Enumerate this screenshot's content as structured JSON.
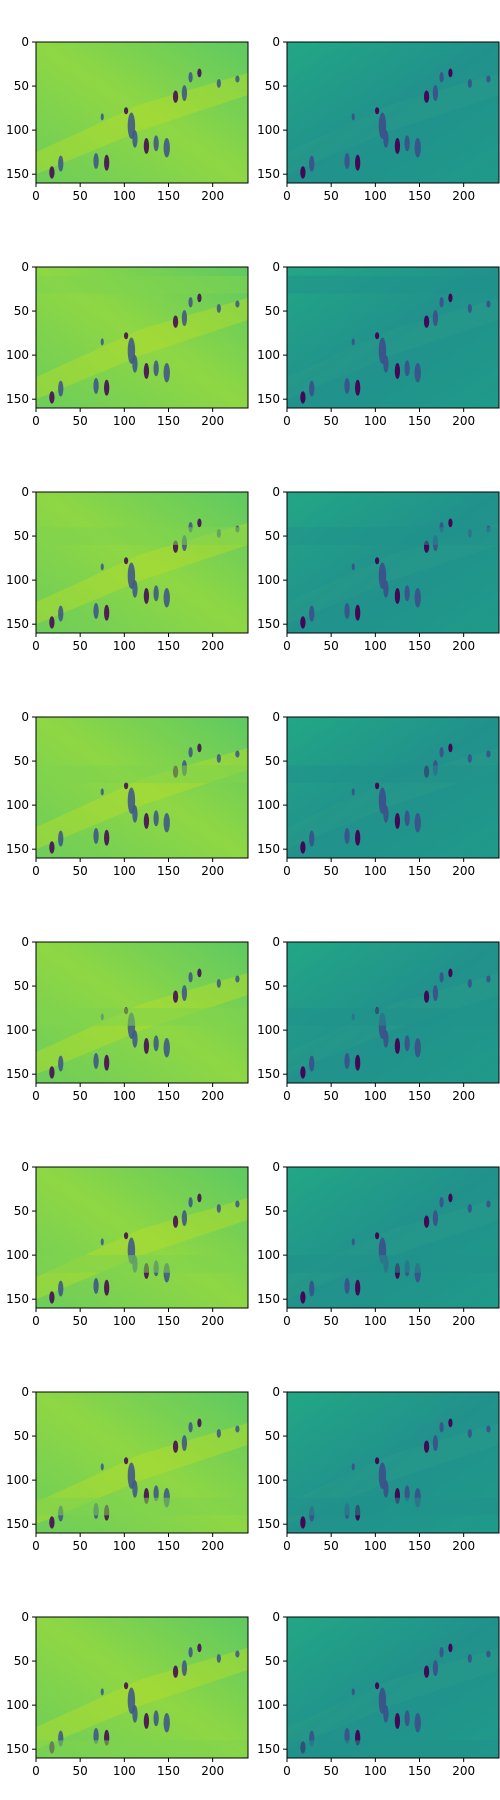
{
  "figure": {
    "rows": 8,
    "cols": 2,
    "colormap": "viridis",
    "colors": {
      "left_background": "#5ec962",
      "left_highlight": "#b8de29",
      "right_background": "#21918c",
      "figure_dark": "#440154",
      "mid_dark": "#3b528b",
      "axis": "#000000"
    }
  },
  "chart_data": {
    "type": "heatmap",
    "description_free": true,
    "xlim": [
      0,
      240
    ],
    "ylim": [
      160,
      0
    ],
    "x_ticks": [
      0,
      50,
      100,
      150,
      200
    ],
    "y_ticks": [
      0,
      50,
      100,
      150
    ],
    "panels": [
      {
        "row": 0,
        "col": 0,
        "kind": "reconstruction",
        "band": null
      },
      {
        "row": 0,
        "col": 1,
        "kind": "residual",
        "band": null
      },
      {
        "row": 1,
        "col": 0,
        "kind": "reconstruction",
        "band": [
          10,
          30
        ]
      },
      {
        "row": 1,
        "col": 1,
        "kind": "residual",
        "band": [
          10,
          30
        ]
      },
      {
        "row": 2,
        "col": 0,
        "kind": "reconstruction",
        "band": [
          40,
          60
        ]
      },
      {
        "row": 2,
        "col": 1,
        "kind": "residual",
        "band": [
          40,
          60
        ]
      },
      {
        "row": 3,
        "col": 0,
        "kind": "reconstruction",
        "band": [
          55,
          75
        ]
      },
      {
        "row": 3,
        "col": 1,
        "kind": "residual",
        "band": [
          55,
          75
        ]
      },
      {
        "row": 4,
        "col": 0,
        "kind": "reconstruction",
        "band": [
          75,
          95
        ]
      },
      {
        "row": 4,
        "col": 1,
        "kind": "residual",
        "band": [
          75,
          95
        ]
      },
      {
        "row": 5,
        "col": 0,
        "kind": "reconstruction",
        "band": [
          100,
          120
        ]
      },
      {
        "row": 5,
        "col": 1,
        "kind": "residual",
        "band": [
          100,
          120
        ]
      },
      {
        "row": 6,
        "col": 0,
        "kind": "reconstruction",
        "band": [
          120,
          140
        ]
      },
      {
        "row": 6,
        "col": 1,
        "kind": "residual",
        "band": [
          120,
          140
        ]
      },
      {
        "row": 7,
        "col": 0,
        "kind": "reconstruction",
        "band": [
          140,
          160
        ]
      },
      {
        "row": 7,
        "col": 1,
        "kind": "residual",
        "band": [
          140,
          160
        ]
      }
    ],
    "figures": [
      {
        "x": 18,
        "y": 148,
        "w": 5,
        "h": 14
      },
      {
        "x": 28,
        "y": 138,
        "w": 5,
        "h": 18
      },
      {
        "x": 68,
        "y": 135,
        "w": 5,
        "h": 18
      },
      {
        "x": 80,
        "y": 137,
        "w": 5,
        "h": 18
      },
      {
        "x": 108,
        "y": 95,
        "w": 7,
        "h": 30
      },
      {
        "x": 112,
        "y": 110,
        "w": 5,
        "h": 20
      },
      {
        "x": 125,
        "y": 118,
        "w": 5,
        "h": 18
      },
      {
        "x": 136,
        "y": 115,
        "w": 5,
        "h": 18
      },
      {
        "x": 148,
        "y": 120,
        "w": 6,
        "h": 22
      },
      {
        "x": 158,
        "y": 62,
        "w": 5,
        "h": 14
      },
      {
        "x": 168,
        "y": 58,
        "w": 5,
        "h": 18
      },
      {
        "x": 175,
        "y": 40,
        "w": 4,
        "h": 12
      },
      {
        "x": 185,
        "y": 35,
        "w": 4,
        "h": 10
      },
      {
        "x": 207,
        "y": 47,
        "w": 4,
        "h": 10
      },
      {
        "x": 228,
        "y": 42,
        "w": 4,
        "h": 8
      },
      {
        "x": 102,
        "y": 78,
        "w": 4,
        "h": 8
      },
      {
        "x": 75,
        "y": 85,
        "w": 3,
        "h": 8
      }
    ]
  }
}
